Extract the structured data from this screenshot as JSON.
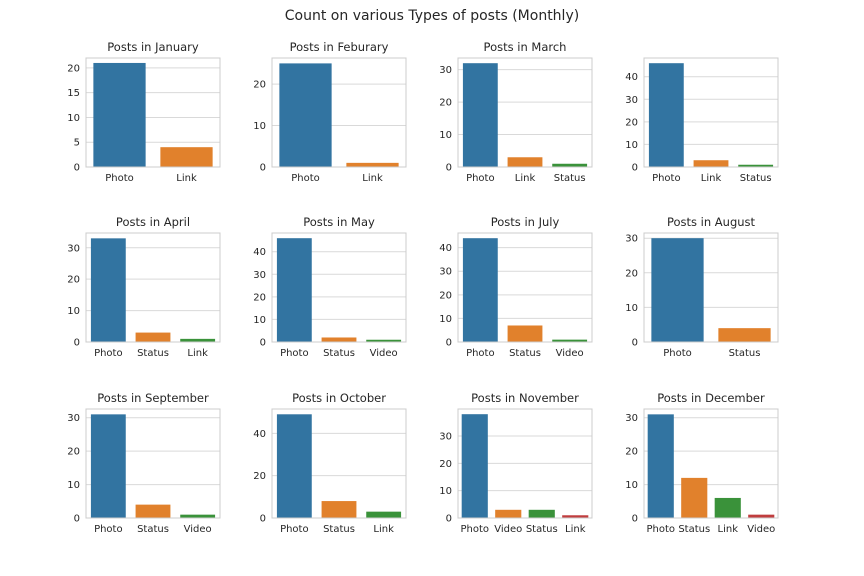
{
  "suptitle": "Count on various Types of posts (Monthly)",
  "colors": {
    "Photo": "#3274a1",
    "Link": "#e1812c",
    "Status": "#3a923a",
    "Video": "#c03d3e",
    "orange": "#e1812c",
    "green": "#3a923a",
    "red": "#c03d3e",
    "grid": "#d9d9d9",
    "frame": "#cccccc"
  },
  "chart_data": [
    {
      "type": "bar",
      "title": "Posts in January",
      "categories": [
        "Photo",
        "Link"
      ],
      "values": [
        21,
        4
      ],
      "yticks": [
        0,
        5,
        10,
        15,
        20
      ],
      "ylim": [
        0,
        22
      ]
    },
    {
      "type": "bar",
      "title": "Posts in Feburary",
      "categories": [
        "Photo",
        "Link"
      ],
      "values": [
        25,
        1
      ],
      "yticks": [
        0,
        10,
        20
      ],
      "ylim": [
        0,
        26.3
      ]
    },
    {
      "type": "bar",
      "title": "Posts in March",
      "categories": [
        "Photo",
        "Link",
        "Status"
      ],
      "values": [
        32,
        3,
        1
      ],
      "yticks": [
        0,
        10,
        20,
        30
      ],
      "ylim": [
        0,
        33.6
      ]
    },
    {
      "type": "bar",
      "title": "",
      "categories": [
        "Photo",
        "Link",
        "Status"
      ],
      "values": [
        46,
        3,
        1
      ],
      "yticks": [
        0,
        10,
        20,
        30,
        40
      ],
      "ylim": [
        0,
        48.3
      ]
    },
    {
      "type": "bar",
      "title": "Posts in April",
      "categories": [
        "Photo",
        "Status",
        "Link"
      ],
      "values": [
        33,
        3,
        1
      ],
      "yticks": [
        0,
        10,
        20,
        30
      ],
      "ylim": [
        0,
        34.7
      ]
    },
    {
      "type": "bar",
      "title": "Posts in May",
      "categories": [
        "Photo",
        "Status",
        "Video"
      ],
      "values": [
        46,
        2,
        1
      ],
      "yticks": [
        0,
        10,
        20,
        30,
        40
      ],
      "ylim": [
        0,
        48.3
      ]
    },
    {
      "type": "bar",
      "title": "Posts in July",
      "categories": [
        "Photo",
        "Status",
        "Video"
      ],
      "values": [
        44,
        7,
        1
      ],
      "yticks": [
        0,
        10,
        20,
        30,
        40
      ],
      "ylim": [
        0,
        46.2
      ]
    },
    {
      "type": "bar",
      "title": "Posts in August",
      "categories": [
        "Photo",
        "Status"
      ],
      "values": [
        30,
        4
      ],
      "yticks": [
        0,
        10,
        20,
        30
      ],
      "ylim": [
        0,
        31.5
      ]
    },
    {
      "type": "bar",
      "title": "Posts in September",
      "categories": [
        "Photo",
        "Status",
        "Video"
      ],
      "values": [
        31,
        4,
        1
      ],
      "yticks": [
        0,
        10,
        20,
        30
      ],
      "ylim": [
        0,
        32.6
      ]
    },
    {
      "type": "bar",
      "title": "Posts in October",
      "categories": [
        "Photo",
        "Status",
        "Link"
      ],
      "values": [
        49,
        8,
        3
      ],
      "yticks": [
        0,
        20,
        40
      ],
      "ylim": [
        0,
        51.5
      ]
    },
    {
      "type": "bar",
      "title": "Posts in November",
      "categories": [
        "Photo",
        "Video",
        "Status",
        "Link"
      ],
      "values": [
        38,
        3,
        3,
        1
      ],
      "yticks": [
        0,
        10,
        20,
        30
      ],
      "ylim": [
        0,
        39.9
      ]
    },
    {
      "type": "bar",
      "title": "Posts in December",
      "categories": [
        "Photo",
        "Status",
        "Link",
        "Video"
      ],
      "values": [
        31,
        12,
        6,
        1
      ],
      "yticks": [
        0,
        10,
        20,
        30
      ],
      "ylim": [
        0,
        32.6
      ]
    }
  ]
}
